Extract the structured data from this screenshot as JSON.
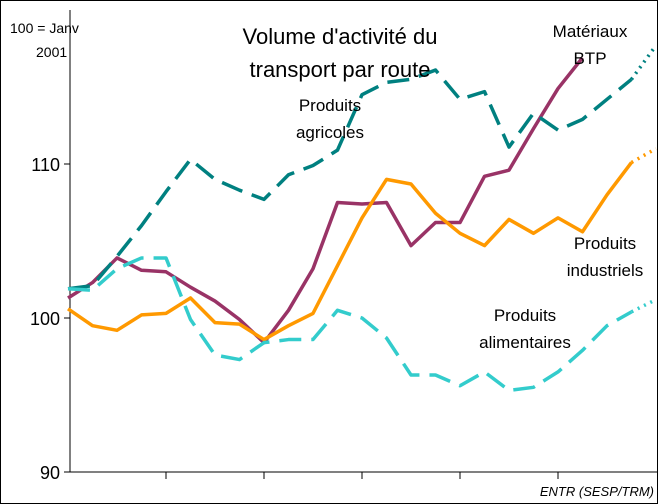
{
  "chart_data": {
    "type": "line",
    "title": "Volume d'activité du transport par route",
    "annotations": {
      "base": "100 = Janv",
      "base_year": "2001"
    },
    "source": "ENTR (SESP/TRM)",
    "x": [
      0,
      1,
      2,
      3,
      4,
      5,
      6,
      7,
      8,
      9,
      10,
      11,
      12,
      13,
      14,
      15,
      16,
      17,
      18,
      19,
      20,
      21,
      22,
      23,
      24
    ],
    "xlim": [
      0,
      24
    ],
    "xticks": [
      4,
      8,
      12,
      16,
      20
    ],
    "ylim": [
      90,
      120
    ],
    "yticks": [
      90,
      100,
      110
    ],
    "projection_from": 23,
    "series": [
      {
        "name": "Matériaux BTP",
        "color": "#993366",
        "style": "solid",
        "values": [
          101.3,
          102.3,
          103.9,
          103.1,
          103.0,
          102.0,
          101.1,
          99.9,
          98.4,
          100.5,
          103.2,
          107.5,
          107.4,
          107.5,
          104.7,
          106.2,
          106.2,
          109.2,
          109.6,
          112.3,
          114.9,
          116.9,
          null,
          null,
          null
        ]
      },
      {
        "name": "Produits industriels",
        "color": "#ff9900",
        "style": "solid",
        "values": [
          100.6,
          99.5,
          99.2,
          100.2,
          100.3,
          101.3,
          99.7,
          99.6,
          98.6,
          99.5,
          100.3,
          103.4,
          106.5,
          109.0,
          108.7,
          106.8,
          105.5,
          104.7,
          106.4,
          105.5,
          106.5,
          105.6,
          108.0,
          110.1,
          111.0
        ]
      },
      {
        "name": "Produits agricoles",
        "color": "#008080",
        "style": "dashed",
        "values": [
          101.9,
          102.1,
          104.0,
          106.0,
          108.2,
          110.3,
          109.0,
          108.3,
          107.7,
          109.3,
          109.9,
          110.9,
          114.5,
          115.3,
          115.5,
          116.1,
          114.2,
          114.7,
          111.1,
          113.3,
          112.2,
          112.9,
          114.2,
          115.5,
          117.7
        ]
      },
      {
        "name": "Produits alimentaires",
        "color": "#33cccc",
        "style": "dashed",
        "values": [
          101.9,
          101.8,
          103.2,
          103.9,
          103.9,
          99.9,
          97.6,
          97.3,
          98.4,
          98.6,
          98.6,
          100.5,
          100.0,
          98.7,
          96.3,
          96.3,
          95.6,
          96.5,
          95.3,
          95.5,
          96.5,
          97.9,
          99.5,
          100.4,
          101.2
        ]
      }
    ]
  }
}
